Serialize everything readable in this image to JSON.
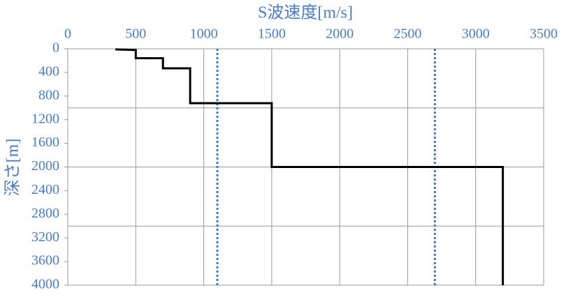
{
  "chart_data": {
    "type": "line",
    "title": "S波速度[m/s]",
    "y_label": "深さ[m]",
    "xlim": [
      0,
      3500
    ],
    "xticks": [
      0,
      500,
      1000,
      1500,
      2000,
      2500,
      3000,
      3500
    ],
    "ylim": [
      0,
      4000
    ],
    "yticks": [
      0,
      400,
      800,
      1200,
      1600,
      2000,
      2400,
      2800,
      3200,
      3600,
      4000
    ],
    "y_inverted": true,
    "x_grid": true,
    "y_gridlines": [
      1000,
      2000,
      3000
    ],
    "series": [
      {
        "color": "#000000",
        "x": [
          350,
          500,
          500,
          700,
          700,
          900,
          900,
          1500,
          1500,
          3200,
          3200
        ],
        "y": [
          10,
          20,
          160,
          160,
          330,
          330,
          920,
          920,
          2000,
          2000,
          4000
        ]
      }
    ],
    "reference_lines": {
      "color": "#3b78d8",
      "x": [
        1100,
        2700
      ]
    }
  }
}
